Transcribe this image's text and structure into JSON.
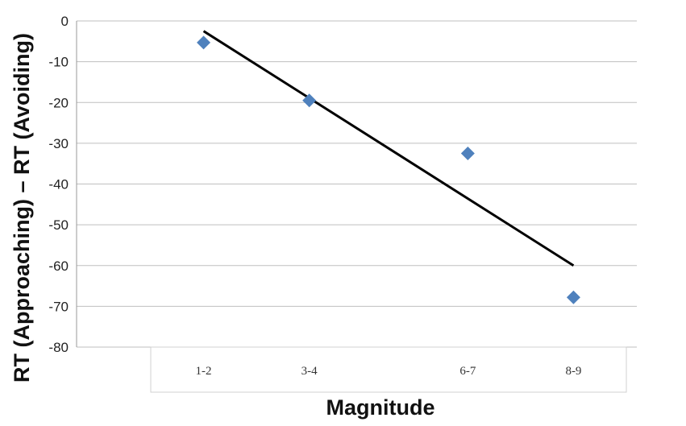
{
  "chart_data": {
    "type": "scatter",
    "title": "",
    "xlabel": "Magnitude",
    "ylabel": "RT (Approaching) – RT (Avoiding)",
    "categories": [
      "1-2",
      "3-4",
      "6-7",
      "8-9"
    ],
    "x": [
      1.5,
      3.5,
      6.5,
      8.5
    ],
    "ylim": [
      -80,
      0
    ],
    "yticks": [
      "0",
      "-10",
      "-20",
      "-30",
      "-40",
      "-50",
      "-60",
      "-70",
      "-80"
    ],
    "grid": true,
    "series": [
      {
        "values": [
          -5.3,
          -19.5,
          -32.5,
          -67.8
        ],
        "color": "#4F81BD",
        "marker": "diamond"
      }
    ],
    "trendline": {
      "type": "linear",
      "x": [
        1.5,
        8.5
      ],
      "y": [
        -2.5,
        -60
      ],
      "color": "#000000"
    }
  }
}
